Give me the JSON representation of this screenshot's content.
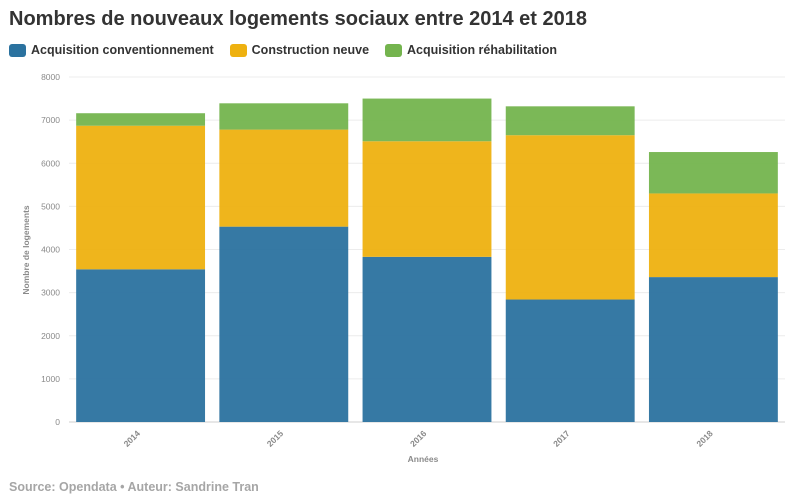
{
  "title": "Nombres de nouveaux logements sociaux entre 2014 et 2018",
  "source": "Source: Opendata • Auteur: Sandrine Tran",
  "chart_data": {
    "type": "bar",
    "stacked": true,
    "categories": [
      "2014",
      "2015",
      "2016",
      "2017",
      "2018"
    ],
    "series": [
      {
        "name": "Acquisition conventionnement",
        "color": "#2b729f",
        "values": [
          3540,
          4530,
          3830,
          2840,
          3360
        ]
      },
      {
        "name": "Construction neuve",
        "color": "#eeb110",
        "values": [
          3330,
          2250,
          2680,
          3810,
          1940
        ]
      },
      {
        "name": "Acquisition réhabilitation",
        "color": "#74b44e",
        "values": [
          290,
          610,
          990,
          670,
          960
        ]
      }
    ],
    "xlabel": "Années",
    "ylabel": "Nombre de logements",
    "ylim": [
      0,
      8000
    ],
    "yticks": [
      0,
      1000,
      2000,
      3000,
      4000,
      5000,
      6000,
      7000,
      8000
    ],
    "grid": true,
    "legend": "top-left"
  }
}
